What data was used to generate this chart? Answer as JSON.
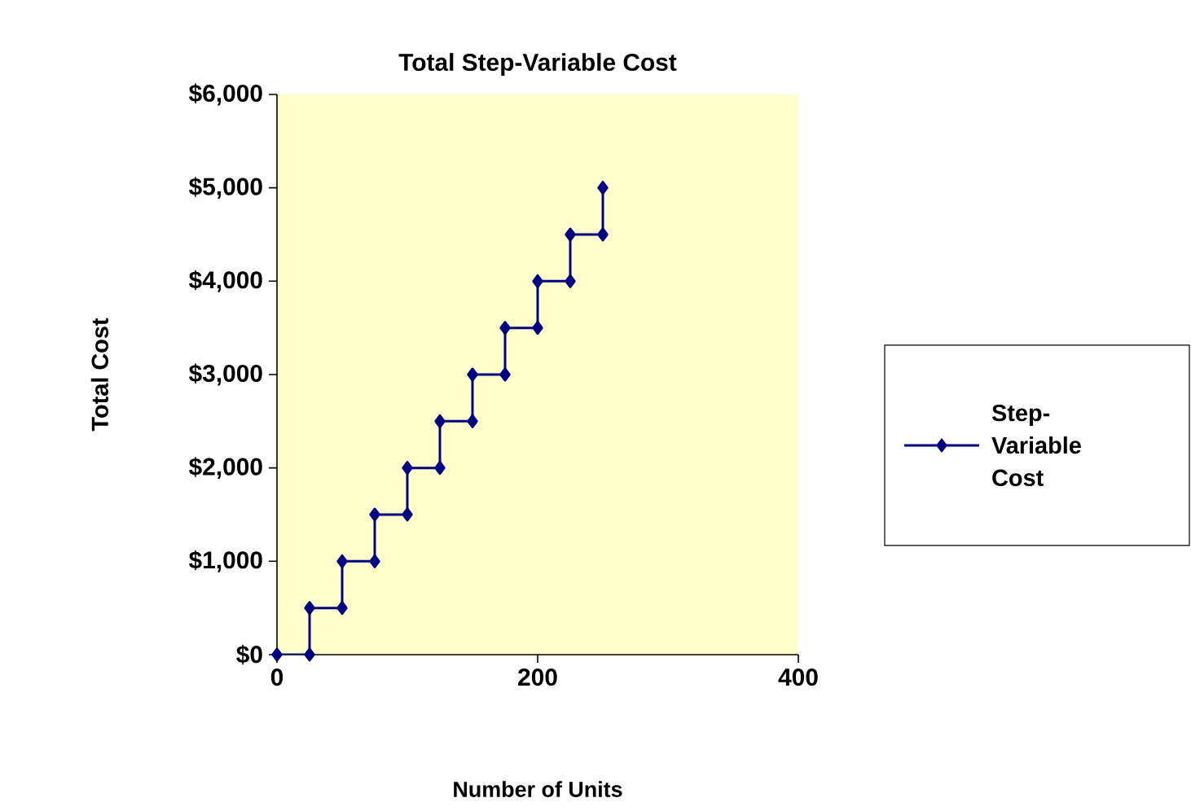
{
  "chart_data": {
    "type": "line",
    "title": "Total Step-Variable Cost",
    "xlabel": "Number of Units",
    "ylabel": "Total Cost",
    "series": [
      {
        "name": "Step-Variable Cost",
        "color": "#000080",
        "x": [
          0,
          25,
          25,
          50,
          50,
          75,
          75,
          100,
          100,
          125,
          125,
          150,
          150,
          175,
          175,
          200,
          200,
          225,
          225,
          250,
          250
        ],
        "values": [
          0,
          0,
          500,
          500,
          1000,
          1000,
          1500,
          1500,
          2000,
          2000,
          2500,
          2500,
          3000,
          3000,
          3500,
          3500,
          4000,
          4000,
          4500,
          4500,
          5000
        ]
      }
    ],
    "xlim": [
      0,
      400
    ],
    "xticks": [
      0,
      200,
      400
    ],
    "ylim": [
      0,
      6000
    ],
    "yticks": [
      {
        "value": 0,
        "label": "$0"
      },
      {
        "value": 1000,
        "label": "$1,000"
      },
      {
        "value": 2000,
        "label": "$2,000"
      },
      {
        "value": 3000,
        "label": "$3,000"
      },
      {
        "value": 4000,
        "label": "$4,000"
      },
      {
        "value": 5000,
        "label": "$5,000"
      },
      {
        "value": 6000,
        "label": "$6,000"
      }
    ],
    "grid": false,
    "legend": "right",
    "marker": "diamond",
    "line_style": "solid"
  }
}
